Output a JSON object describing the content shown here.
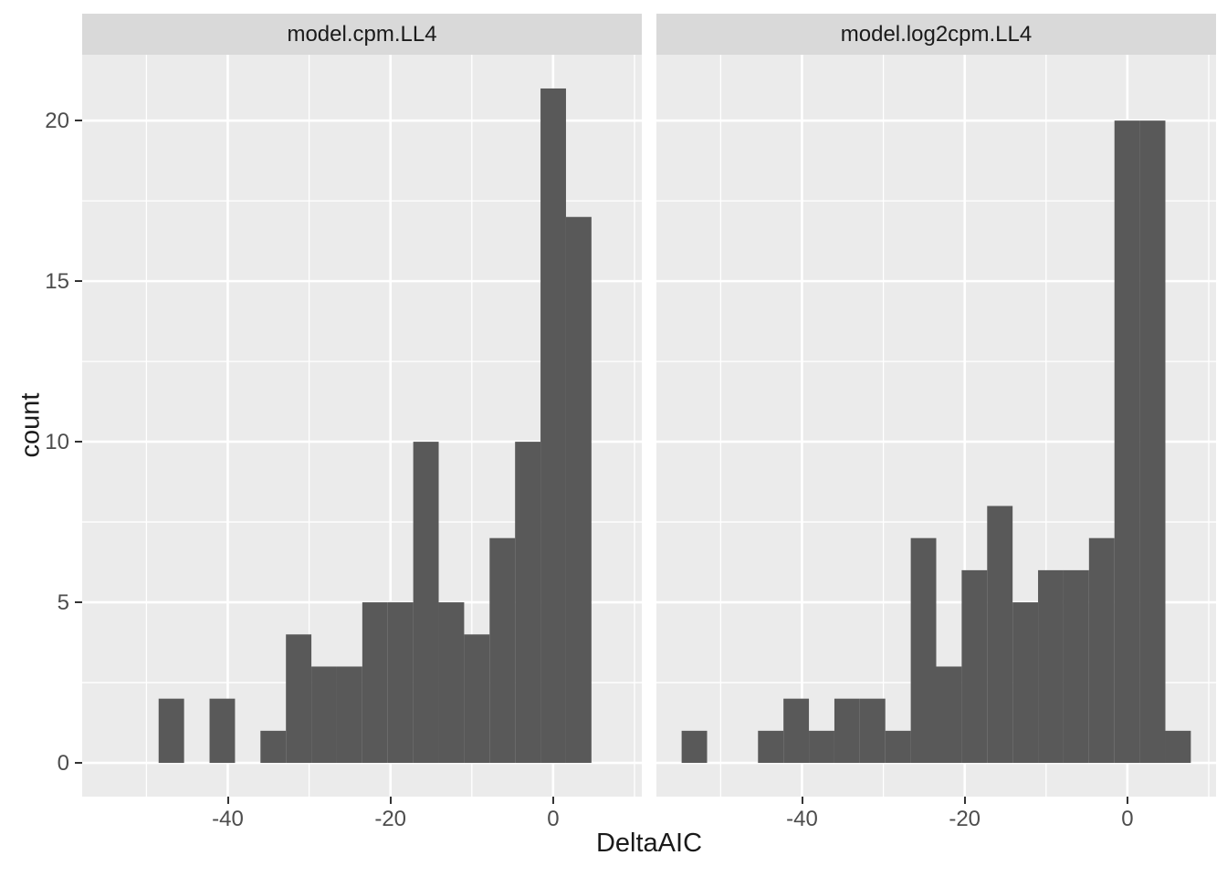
{
  "figure": {
    "xlabel": "DeltaAIC",
    "ylabel": "count",
    "colors": {
      "background": "#FFFFFF",
      "panel_background": "#EBEBEB",
      "strip_background": "#D9D9D9",
      "bar_fill": "#595959",
      "gridline": "#FFFFFF",
      "tick_mark": "#333333",
      "tick_label": "#4D4D4D",
      "title_text": "#1A1A1A",
      "strip_text": "#1A1A1A"
    }
  },
  "chart_data": {
    "type": "bar",
    "subtype": "faceted-histogram",
    "title": "",
    "xlabel": "DeltaAIC",
    "ylabel": "count",
    "grid": true,
    "legend": false,
    "xlim": [
      -57.9,
      10.9
    ],
    "ylim": [
      -1.05,
      22.05
    ],
    "bin_width": 3.13,
    "x_ticks": [
      {
        "value": -40,
        "label": "-40"
      },
      {
        "value": -20,
        "label": "-20"
      },
      {
        "value": 0,
        "label": "0"
      }
    ],
    "y_ticks": [
      {
        "value": 0,
        "label": "0"
      },
      {
        "value": 5,
        "label": "5"
      },
      {
        "value": 10,
        "label": "10"
      },
      {
        "value": 15,
        "label": "15"
      },
      {
        "value": 20,
        "label": "20"
      }
    ],
    "x_minor_gridlines": [
      -50,
      -30,
      -10,
      10
    ],
    "y_minor_gridlines": [
      2.5,
      7.5,
      12.5,
      17.5
    ],
    "facets": [
      {
        "label": "model.cpm.LL4",
        "bin_start": -48.5,
        "counts": [
          2,
          0,
          2,
          0,
          1,
          4,
          3,
          3,
          5,
          5,
          10,
          5,
          4,
          7,
          10,
          21,
          17
        ]
      },
      {
        "label": "model.log2cpm.LL4",
        "bin_start": -54.8,
        "counts": [
          1,
          0,
          0,
          1,
          2,
          1,
          2,
          2,
          1,
          7,
          3,
          6,
          8,
          5,
          6,
          6,
          7,
          20,
          20,
          1
        ]
      }
    ]
  }
}
